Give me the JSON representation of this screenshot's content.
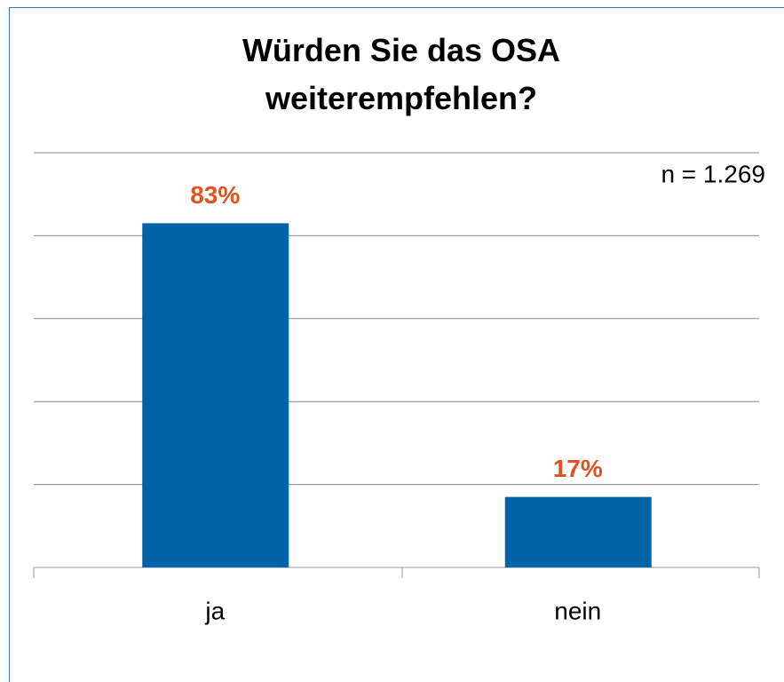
{
  "chart_data": {
    "type": "bar",
    "title": "Würden Sie das OSA weiterempfehlen?",
    "annotation": "n = 1.269",
    "categories": [
      "ja",
      "nein"
    ],
    "values": [
      83,
      17
    ],
    "value_labels": [
      "83%",
      "17%"
    ],
    "color": "#0063a8",
    "label_color": "#e0521f",
    "ylim": [
      0,
      100
    ],
    "yticks": [
      0,
      20,
      40,
      60,
      80,
      100
    ],
    "grid": true
  }
}
